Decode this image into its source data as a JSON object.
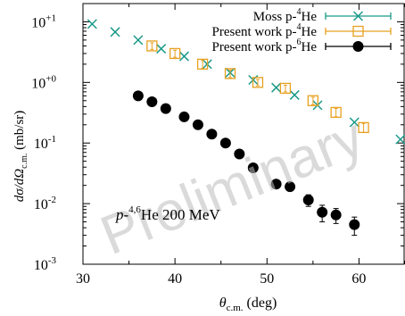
{
  "chart_data": {
    "type": "scatter",
    "title": "",
    "xlabel_main": "θ",
    "xlabel_sub": "c.m.",
    "xlabel_unit": "(deg)",
    "ylabel_pre": "dσ/dΩ",
    "ylabel_sub": "c.m.",
    "ylabel_unit": "(mb/sr)",
    "xlim": [
      30,
      65
    ],
    "ylim": [
      0.001,
      20
    ],
    "yscale": "log",
    "grid": false,
    "legend_position": "top-right",
    "x_ticks": [
      30,
      40,
      50,
      60
    ],
    "y_ticks": [
      {
        "value": 0.001,
        "base": "10",
        "exp": "-3"
      },
      {
        "value": 0.01,
        "base": "10",
        "exp": "-2"
      },
      {
        "value": 0.1,
        "base": "10",
        "exp": "-1"
      },
      {
        "value": 1,
        "base": "10",
        "exp": "+0"
      },
      {
        "value": 10,
        "base": "10",
        "exp": "+1"
      }
    ],
    "legend": [
      {
        "text": "Moss p-",
        "sup": "4",
        "tail": "He",
        "marker": "x",
        "color": "#1a9a8a"
      },
      {
        "text": "Present work p-",
        "sup": "4",
        "tail": "He",
        "marker": "box",
        "color": "#e8a020"
      },
      {
        "text": "Present work p-",
        "sup": "6",
        "tail": "He",
        "marker": "circle",
        "color": "#000000"
      }
    ],
    "annotation": {
      "pre": "p-",
      "sup": "4,6",
      "post": "He 200 MeV"
    },
    "watermark": "Preliminary",
    "series": [
      {
        "marker": "x",
        "color": "#1a9a8a",
        "points": [
          {
            "x": 31.0,
            "y": 9.2
          },
          {
            "x": 33.5,
            "y": 6.8
          },
          {
            "x": 36.0,
            "y": 5.0
          },
          {
            "x": 38.5,
            "y": 3.6
          },
          {
            "x": 41.0,
            "y": 2.7
          },
          {
            "x": 43.5,
            "y": 2.0
          },
          {
            "x": 46.0,
            "y": 1.45
          },
          {
            "x": 48.5,
            "y": 1.1
          },
          {
            "x": 51.0,
            "y": 0.82
          },
          {
            "x": 53.0,
            "y": 0.62
          },
          {
            "x": 55.5,
            "y": 0.42
          },
          {
            "x": 59.5,
            "y": 0.22
          },
          {
            "x": 64.5,
            "y": 0.115
          }
        ]
      },
      {
        "marker": "box",
        "color": "#e8a020",
        "points": [
          {
            "x": 37.5,
            "y": 4.0,
            "err": 0.5
          },
          {
            "x": 40.0,
            "y": 3.0,
            "err": 0.4
          },
          {
            "x": 43.0,
            "y": 2.0,
            "err": 0.3
          },
          {
            "x": 46.0,
            "y": 1.4,
            "err": 0.2
          },
          {
            "x": 49.0,
            "y": 1.0,
            "err": 0.12
          },
          {
            "x": 52.0,
            "y": 0.8,
            "err": 0.1
          },
          {
            "x": 55.0,
            "y": 0.5,
            "err": 0.07
          },
          {
            "x": 57.5,
            "y": 0.32,
            "err": 0.05
          },
          {
            "x": 60.5,
            "y": 0.18,
            "err": 0.03
          }
        ]
      },
      {
        "marker": "circle",
        "color": "#000000",
        "points": [
          {
            "x": 36.0,
            "y": 0.6
          },
          {
            "x": 37.5,
            "y": 0.48
          },
          {
            "x": 39.0,
            "y": 0.37
          },
          {
            "x": 41.0,
            "y": 0.27
          },
          {
            "x": 42.5,
            "y": 0.2
          },
          {
            "x": 44.0,
            "y": 0.14
          },
          {
            "x": 45.5,
            "y": 0.1
          },
          {
            "x": 47.0,
            "y": 0.066
          },
          {
            "x": 48.5,
            "y": 0.039
          },
          {
            "x": 51.0,
            "y": 0.021
          },
          {
            "x": 52.5,
            "y": 0.019
          },
          {
            "x": 54.5,
            "y": 0.0115,
            "err": 0.0025
          },
          {
            "x": 56.0,
            "y": 0.0072,
            "err": 0.0022
          },
          {
            "x": 57.5,
            "y": 0.0065,
            "err": 0.0018
          },
          {
            "x": 59.5,
            "y": 0.0045,
            "err": 0.0015
          }
        ]
      }
    ]
  }
}
